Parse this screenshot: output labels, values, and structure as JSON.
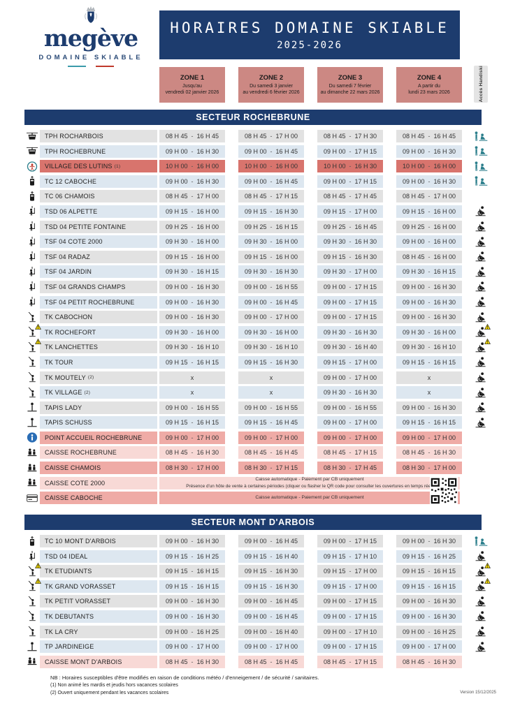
{
  "colors": {
    "navy": "#1d3c6e",
    "zone-salmon": "#cc8883",
    "row-gray": "#e2e2e2",
    "row-blue": "#dde7f0",
    "row-salmon": "#d8746d",
    "row-pink-med": "#efaba6",
    "row-pink-light": "#f8d9d6",
    "teal": "#2c7f8c",
    "teal2": "#3b9aaa",
    "warn-yellow": "#f2d900",
    "info-blue": "#2a6db5",
    "accent-red": "#c0392b"
  },
  "header": {
    "logo": {
      "name": "megève",
      "subtitle": "DOMAINE SKIABLE"
    },
    "title": "HORAIRES DOMAINE SKIABLE",
    "season": "2025-2026",
    "zones": [
      {
        "label": "ZONE 1",
        "line1": "Jusqu'au",
        "line2": "vendredi 02 janvier 2026"
      },
      {
        "label": "ZONE 2",
        "line1": "Du samedi 3 janvier",
        "line2": "au vendredi 6 février 2026"
      },
      {
        "label": "ZONE 3",
        "line1": "Du samedi 7 février",
        "line2": "au dimanche 22 mars 2026"
      },
      {
        "label": "ZONE 4",
        "line1": "A partir du",
        "line2": "lundi 23 mars 2026"
      }
    ],
    "handiski_label": "Accès Handiski"
  },
  "sectors": [
    {
      "title": "SECTEUR ROCHEBRUNE",
      "rows": [
        {
          "icon": "cable-car-icon",
          "name": "TPH ROCHARBOIS",
          "bg": "gray",
          "handiski": "handiski-assisted-icon",
          "times": [
            [
              "08 H 45",
              "16 H 45"
            ],
            [
              "08 H 45",
              "17 H 00"
            ],
            [
              "08 H 45",
              "17 H 30"
            ],
            [
              "08 H 45",
              "16 H 45"
            ]
          ]
        },
        {
          "icon": "cable-car-icon",
          "name": "TPH ROCHEBRUNE",
          "bg": "blue",
          "handiski": "handiski-assisted-icon",
          "times": [
            [
              "09 H 00",
              "16 H 30"
            ],
            [
              "09 H 00",
              "16 H 45"
            ],
            [
              "09 H 00",
              "17 H 15"
            ],
            [
              "09 H 00",
              "16 H 30"
            ]
          ]
        },
        {
          "icon": "lutins-badge-icon",
          "name": "VILLAGE DES LUTINS",
          "note": "(1)",
          "bg": "salmon",
          "handiski": "handiski-assisted-icon",
          "times": [
            [
              "10 H 00",
              "16 H 00"
            ],
            [
              "10 H 00",
              "16 H 00"
            ],
            [
              "10 H 00",
              "16 H 30"
            ],
            [
              "10 H 00",
              "16 H 00"
            ]
          ]
        },
        {
          "icon": "gondola-icon",
          "name": "TC 12 CABOCHE",
          "bg": "blue",
          "handiski": "handiski-assisted-icon",
          "times": [
            [
              "09 H 00",
              "16 H 30"
            ],
            [
              "09 H 00",
              "16 H 45"
            ],
            [
              "09 H 00",
              "17 H 15"
            ],
            [
              "09 H 00",
              "16 H 30"
            ]
          ]
        },
        {
          "icon": "gondola-icon",
          "name": "TC 06 CHAMOIS",
          "bg": "gray",
          "handiski": null,
          "times": [
            [
              "08 H 45",
              "17 H 00"
            ],
            [
              "08 H 45",
              "17 H 15"
            ],
            [
              "08 H 45",
              "17 H 45"
            ],
            [
              "08 H 45",
              "17 H 00"
            ]
          ]
        },
        {
          "icon": "chairlift-icon",
          "name": "TSD 06 ALPETTE",
          "bg": "blue",
          "handiski": "sitski-icon",
          "times": [
            [
              "09 H 15",
              "16 H 00"
            ],
            [
              "09 H 15",
              "16 H 30"
            ],
            [
              "09 H 15",
              "17 H 00"
            ],
            [
              "09 H 15",
              "16 H 00"
            ]
          ]
        },
        {
          "icon": "chairlift-icon",
          "name": "TSD 04 PETITE FONTAINE",
          "bg": "gray",
          "handiski": "sitski-icon",
          "times": [
            [
              "09 H 25",
              "16 H 00"
            ],
            [
              "09 H 25",
              "16 H 15"
            ],
            [
              "09 H 25",
              "16 H 45"
            ],
            [
              "09 H 25",
              "16 H 00"
            ]
          ]
        },
        {
          "icon": "chairlift-icon",
          "name": "TSF 04 COTE 2000",
          "bg": "blue",
          "handiski": "sitski-icon",
          "times": [
            [
              "09 H 30",
              "16 H 00"
            ],
            [
              "09 H 30",
              "16 H 00"
            ],
            [
              "09 H 30",
              "16 H 30"
            ],
            [
              "09 H 00",
              "16 H 00"
            ]
          ]
        },
        {
          "icon": "chairlift-icon",
          "name": "TSF 04 RADAZ",
          "bg": "gray",
          "handiski": "sitski-icon",
          "times": [
            [
              "09 H 15",
              "16 H 00"
            ],
            [
              "09 H 15",
              "16 H 00"
            ],
            [
              "09 H 15",
              "16 H 30"
            ],
            [
              "08 H 45",
              "16 H 00"
            ]
          ]
        },
        {
          "icon": "chairlift-icon",
          "name": "TSF 04 JARDIN",
          "bg": "blue",
          "handiski": "sitski-icon",
          "times": [
            [
              "09 H 30",
              "16 H 15"
            ],
            [
              "09 H 30",
              "16 H 30"
            ],
            [
              "09 H 30",
              "17 H 00"
            ],
            [
              "09 H 30",
              "16 H 15"
            ]
          ]
        },
        {
          "icon": "chairlift-icon",
          "name": "TSF 04 GRANDS CHAMPS",
          "bg": "gray",
          "handiski": "sitski-icon",
          "times": [
            [
              "09 H 00",
              "16 H 30"
            ],
            [
              "09 H 00",
              "16 H 55"
            ],
            [
              "09 H 00",
              "17 H 15"
            ],
            [
              "09 H 00",
              "16 H 30"
            ]
          ]
        },
        {
          "icon": "chairlift-icon",
          "name": "TSF 04 PETIT ROCHEBRUNE",
          "bg": "blue",
          "handiski": "sitski-icon",
          "times": [
            [
              "09 H 00",
              "16 H 30"
            ],
            [
              "09 H 00",
              "16 H 45"
            ],
            [
              "09 H 00",
              "17 H 15"
            ],
            [
              "09 H 00",
              "16 H 30"
            ]
          ]
        },
        {
          "icon": "draglift-icon",
          "name": "TK CABOCHON",
          "bg": "gray",
          "handiski": "sitski-icon",
          "times": [
            [
              "09 H 00",
              "16 H 30"
            ],
            [
              "09 H 00",
              "17 H 00"
            ],
            [
              "09 H 00",
              "17 H 15"
            ],
            [
              "09 H 00",
              "16 H 30"
            ]
          ]
        },
        {
          "icon": "draglift-icon",
          "name": "TK ROCHEFORT",
          "bg": "blue",
          "handiski": "sitski-icon",
          "warn": true,
          "times": [
            [
              "09 H 30",
              "16 H 00"
            ],
            [
              "09 H 30",
              "16 H 00"
            ],
            [
              "09 H 30",
              "16 H 30"
            ],
            [
              "09 H 30",
              "16 H 00"
            ]
          ]
        },
        {
          "icon": "draglift-icon",
          "name": "TK LANCHETTES",
          "bg": "gray",
          "handiski": "sitski-icon",
          "warn": true,
          "times": [
            [
              "09 H 30",
              "16 H 10"
            ],
            [
              "09 H 30",
              "16 H 10"
            ],
            [
              "09 H 30",
              "16 H 40"
            ],
            [
              "09 H 30",
              "16 H 10"
            ]
          ]
        },
        {
          "icon": "draglift-icon",
          "name": "TK TOUR",
          "bg": "blue",
          "handiski": "sitski-icon",
          "times": [
            [
              "09 H 15",
              "16 H 15"
            ],
            [
              "09 H 15",
              "16 H 30"
            ],
            [
              "09 H 15",
              "17 H 00"
            ],
            [
              "09 H 15",
              "16 H 15"
            ]
          ]
        },
        {
          "icon": "draglift-icon",
          "name": "TK MOUTELY",
          "note": "(2)",
          "bg": "gray",
          "handiski": "sitski-icon",
          "times": [
            "x",
            "x",
            [
              "09 H 00",
              "17 H 00"
            ],
            "x"
          ]
        },
        {
          "icon": "draglift-icon",
          "name": "TK VILLAGE",
          "note": "(2)",
          "bg": "blue",
          "handiski": "sitski-icon",
          "times": [
            "x",
            "x",
            [
              "09 H 30",
              "16 H 30"
            ],
            "x"
          ]
        },
        {
          "icon": "carpet-icon",
          "name": "TAPIS LADY",
          "bg": "gray",
          "handiski": "sitski-icon",
          "times": [
            [
              "09 H 00",
              "16 H 55"
            ],
            [
              "09 H 00",
              "16 H 55"
            ],
            [
              "09 H 00",
              "16 H 55"
            ],
            [
              "09 H 00",
              "16 H 30"
            ]
          ]
        },
        {
          "icon": "carpet-icon",
          "name": "TAPIS SCHUSS",
          "bg": "blue",
          "handiski": "sitski-icon",
          "times": [
            [
              "09 H 15",
              "16 H 15"
            ],
            [
              "09 H 15",
              "16 H 45"
            ],
            [
              "09 H 00",
              "17 H 00"
            ],
            [
              "09 H 15",
              "16 H 15"
            ]
          ]
        },
        {
          "icon": "info-icon",
          "name": "POINT ACCUEIL ROCHEBRUNE",
          "bg": "pink-med",
          "handiski": null,
          "times": [
            [
              "09 H 00",
              "17 H 00"
            ],
            [
              "09 H 00",
              "17 H 00"
            ],
            [
              "09 H 00",
              "17 H 00"
            ],
            [
              "09 H 00",
              "17 H 00"
            ]
          ]
        },
        {
          "icon": "cashier-icon",
          "name": "CAISSE ROCHEBRUNE",
          "bg": "pink-light",
          "handiski": null,
          "times": [
            [
              "08 H 45",
              "16 H 30"
            ],
            [
              "08 H 45",
              "16 H 45"
            ],
            [
              "08 H 45",
              "17 H 15"
            ],
            [
              "08 H 45",
              "16 H 30"
            ]
          ]
        },
        {
          "icon": "cashier-icon",
          "name": "CAISSE CHAMOIS",
          "bg": "pink-med",
          "handiski": null,
          "times": [
            [
              "08 H 30",
              "17 H 00"
            ],
            [
              "08 H 30",
              "17 H 15"
            ],
            [
              "08 H 30",
              "17 H 45"
            ],
            [
              "08 H 30",
              "17 H 00"
            ]
          ]
        },
        {
          "icon": "cashier-icon",
          "name": "CAISSE COTE 2000",
          "bg": "pink-light",
          "handiski": null,
          "qr": true,
          "band": [
            "Caisse automatique  -  Paiement par CB uniquement",
            "Présence d'un hôte de vente à certaines périodes (cliquer ou flasher le QR code pour consulter les ouvertures en temps réel)"
          ]
        },
        {
          "icon": "card-icon",
          "name": "CAISSE CABOCHE",
          "bg": "pink-med",
          "handiski": null,
          "band": [
            "Caisse automatique  -  Paiement par CB uniquement"
          ]
        }
      ]
    },
    {
      "title": "SECTEUR MONT D'ARBOIS",
      "rows": [
        {
          "icon": "gondola-icon",
          "name": "TC 10 MONT D'ARBOIS",
          "bg": "gray",
          "handiski": "handiski-assisted-icon",
          "times": [
            [
              "09 H 00",
              "16 H 30"
            ],
            [
              "09 H 00",
              "16 H 45"
            ],
            [
              "09 H 00",
              "17 H 15"
            ],
            [
              "09 H 00",
              "16 H 30"
            ]
          ]
        },
        {
          "icon": "chairlift-icon",
          "name": "TSD 04 IDEAL",
          "bg": "blue",
          "handiski": "sitski-icon",
          "times": [
            [
              "09 H 15",
              "16 H 25"
            ],
            [
              "09 H 15",
              "16 H 40"
            ],
            [
              "09 H 15",
              "17 H 10"
            ],
            [
              "09 H 15",
              "16 H 25"
            ]
          ]
        },
        {
          "icon": "draglift-icon",
          "name": "TK ETUDIANTS",
          "bg": "gray",
          "handiski": "sitski-icon",
          "warn": true,
          "times": [
            [
              "09 H 15",
              "16 H 15"
            ],
            [
              "09 H 15",
              "16 H 30"
            ],
            [
              "09 H 15",
              "17 H 00"
            ],
            [
              "09 H 15",
              "16 H 15"
            ]
          ]
        },
        {
          "icon": "draglift-icon",
          "name": "TK GRAND VORASSET",
          "bg": "blue",
          "handiski": "sitski-icon",
          "warn": true,
          "times": [
            [
              "09 H 15",
              "16 H 15"
            ],
            [
              "09 H 15",
              "16 H 30"
            ],
            [
              "09 H 15",
              "17 H 00"
            ],
            [
              "09 H 15",
              "16 H 15"
            ]
          ]
        },
        {
          "icon": "draglift-icon",
          "name": "TK PETIT VORASSET",
          "bg": "gray",
          "handiski": "sitski-icon",
          "times": [
            [
              "09 H 00",
              "16 H 30"
            ],
            [
              "09 H 00",
              "16 H 45"
            ],
            [
              "09 H 00",
              "17 H 15"
            ],
            [
              "09 H 00",
              "16 H 30"
            ]
          ]
        },
        {
          "icon": "draglift-icon",
          "name": "TK DEBUTANTS",
          "bg": "blue",
          "handiski": "sitski-icon",
          "times": [
            [
              "09 H 00",
              "16 H 30"
            ],
            [
              "09 H 00",
              "16 H 45"
            ],
            [
              "09 H 00",
              "17 H 15"
            ],
            [
              "09 H 00",
              "16 H 30"
            ]
          ]
        },
        {
          "icon": "draglift-icon",
          "name": "TK LA CRY",
          "bg": "gray",
          "handiski": "sitski-icon",
          "times": [
            [
              "09 H 00",
              "16 H 25"
            ],
            [
              "09 H 00",
              "16 H 40"
            ],
            [
              "09 H 00",
              "17 H 10"
            ],
            [
              "09 H 00",
              "16 H 25"
            ]
          ]
        },
        {
          "icon": "carpet-icon",
          "name": "TP JARDINEIGE",
          "bg": "blue",
          "handiski": "sitski-icon",
          "times": [
            [
              "09 H 00",
              "17 H 00"
            ],
            [
              "09 H 00",
              "17 H 00"
            ],
            [
              "09 H 00",
              "17 H 15"
            ],
            [
              "09 H 00",
              "17 H 00"
            ]
          ]
        },
        {
          "icon": "cashier-icon",
          "name": "CAISSE MONT D'ARBOIS",
          "bg": "pink-light",
          "handiski": null,
          "times": [
            [
              "08 H 45",
              "16 H 30"
            ],
            [
              "08 H 45",
              "16 H 45"
            ],
            [
              "08 H 45",
              "17 H 15"
            ],
            [
              "08 H 45",
              "16 H 30"
            ]
          ]
        }
      ]
    }
  ],
  "footer": {
    "nb": "NB : Horaires susceptibles d'être modifiés en raison de conditions météo / d'enneigement / de sécurité / sanitaires.",
    "notes": [
      "(1) Non animé les mardis et jeudis hors vacances scolaires",
      "(2) Ouvert uniquement pendant les vacances scolaires"
    ],
    "version": "Version 15/12/2025"
  }
}
